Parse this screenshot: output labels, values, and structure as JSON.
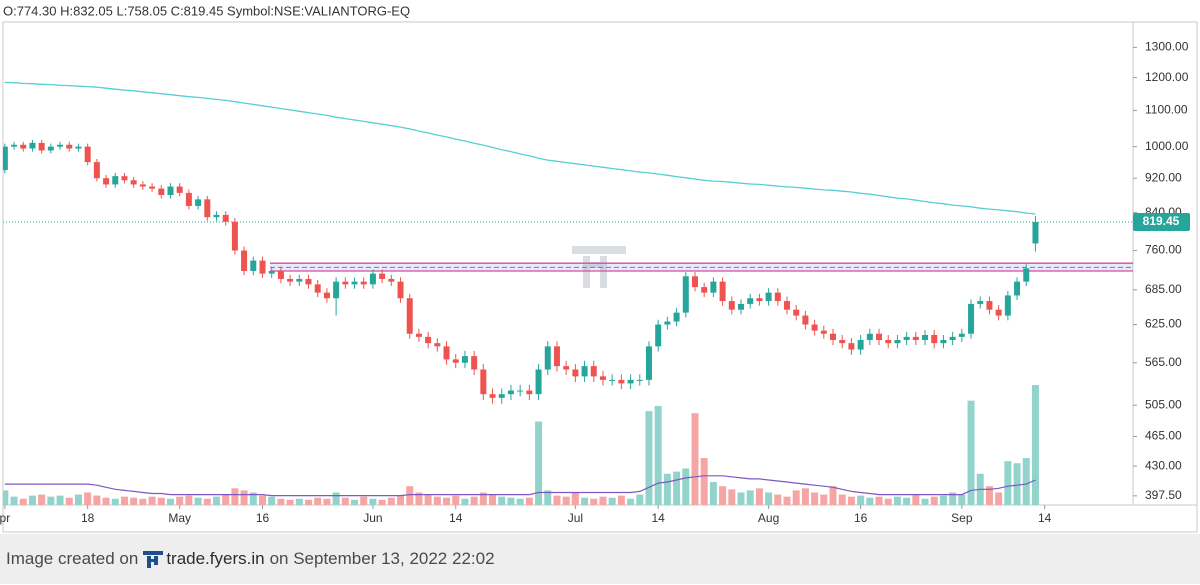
{
  "header": "O:774.30 H:832.05 L:758.05 C:819.45 Symbol:NSE:VALIANTORG-EQ",
  "footer": {
    "prefix": "Image created on",
    "site": "trade.fyers.in",
    "suffix": "on September 13, 2022 22:02"
  },
  "chart_data": {
    "type": "candlestick",
    "log_scale": true,
    "grid": false,
    "up_color": "#26a69a",
    "down_color": "#ef5350",
    "volume_up_color": "#92d4cc",
    "volume_down_color": "#f5a6a4",
    "sma_color": "#56cfd6",
    "volume_ma_color": "#7e57c2",
    "zone_color": "#e0489a",
    "zone_mid_color": "#5b7fd6",
    "ylim": [
      388,
      1390
    ],
    "yticks": [
      {
        "value": 1300,
        "label": "1300.00"
      },
      {
        "value": 1200,
        "label": "1200.00"
      },
      {
        "value": 1100,
        "label": "1100.00"
      },
      {
        "value": 1000,
        "label": "1000.00"
      },
      {
        "value": 920,
        "label": "920.00"
      },
      {
        "value": 840,
        "label": "840.00"
      },
      {
        "value": 760,
        "label": "760.00"
      },
      {
        "value": 685,
        "label": "685.00"
      },
      {
        "value": 625,
        "label": "625.00"
      },
      {
        "value": 565,
        "label": "565.00"
      },
      {
        "value": 505,
        "label": "505.00"
      },
      {
        "value": 465,
        "label": "465.00"
      },
      {
        "value": 430,
        "label": "430.00"
      },
      {
        "value": 397.5,
        "label": "397.50"
      }
    ],
    "xlim": [
      -0.2,
      122.6
    ],
    "xticks": [
      {
        "value": 0,
        "label": "pr"
      },
      {
        "value": 9,
        "label": "18"
      },
      {
        "value": 19,
        "label": "May"
      },
      {
        "value": 28,
        "label": "16"
      },
      {
        "value": 40,
        "label": "Jun"
      },
      {
        "value": 49,
        "label": "14"
      },
      {
        "value": 62,
        "label": "Jul"
      },
      {
        "value": 71,
        "label": "14"
      },
      {
        "value": 83,
        "label": "Aug"
      },
      {
        "value": 93,
        "label": "16"
      },
      {
        "value": 104,
        "label": "Sep"
      },
      {
        "value": 113,
        "label": "14"
      }
    ],
    "open": [
      940,
      1000,
      1005,
      995,
      1010,
      990,
      1000,
      1005,
      995,
      1000,
      960,
      920,
      905,
      925,
      915,
      905,
      900,
      895,
      880,
      900,
      885,
      855,
      870,
      830,
      835,
      820,
      760,
      720,
      740,
      715,
      720,
      705,
      700,
      705,
      695,
      680,
      670,
      700,
      695,
      700,
      695,
      715,
      705,
      700,
      670,
      610,
      605,
      595,
      590,
      570,
      565,
      575,
      555,
      520,
      515,
      520,
      525,
      525,
      520,
      555,
      590,
      560,
      555,
      545,
      560,
      545,
      540,
      540,
      535,
      540,
      540,
      590,
      625,
      630,
      645,
      710,
      690,
      680,
      700,
      665,
      650,
      660,
      670,
      665,
      680,
      665,
      650,
      640,
      625,
      615,
      610,
      600,
      595,
      585,
      600,
      610,
      600,
      595,
      600,
      605,
      600,
      608,
      595,
      600,
      605,
      610,
      660,
      665,
      650,
      640,
      675,
      700,
      774.3
    ],
    "high": [
      1008,
      1013,
      1013,
      1018,
      1018,
      1008,
      1013,
      1013,
      1008,
      1008,
      968,
      928,
      933,
      933,
      923,
      913,
      908,
      903,
      908,
      908,
      893,
      878,
      878,
      843,
      843,
      828,
      768,
      748,
      748,
      728,
      728,
      713,
      713,
      713,
      703,
      688,
      708,
      708,
      708,
      708,
      723,
      723,
      713,
      708,
      678,
      618,
      613,
      603,
      598,
      578,
      583,
      583,
      563,
      528,
      528,
      533,
      533,
      533,
      563,
      598,
      598,
      568,
      563,
      568,
      568,
      553,
      548,
      548,
      548,
      548,
      598,
      633,
      638,
      653,
      718,
      718,
      698,
      708,
      708,
      673,
      668,
      678,
      678,
      688,
      688,
      673,
      658,
      648,
      633,
      623,
      618,
      608,
      603,
      608,
      618,
      618,
      608,
      608,
      613,
      613,
      616,
      616,
      608,
      613,
      618,
      668,
      673,
      673,
      658,
      683,
      708,
      733,
      832.05
    ],
    "low": [
      932,
      992,
      987,
      987,
      982,
      982,
      992,
      987,
      987,
      952,
      912,
      897,
      897,
      907,
      897,
      892,
      887,
      872,
      872,
      877,
      847,
      847,
      822,
      822,
      812,
      752,
      712,
      712,
      707,
      707,
      697,
      692,
      692,
      687,
      672,
      662,
      640,
      687,
      687,
      687,
      687,
      697,
      692,
      662,
      602,
      597,
      587,
      582,
      562,
      557,
      557,
      547,
      512,
      507,
      507,
      512,
      517,
      512,
      512,
      547,
      552,
      547,
      537,
      537,
      537,
      532,
      532,
      527,
      527,
      532,
      532,
      582,
      617,
      622,
      637,
      682,
      672,
      672,
      657,
      642,
      642,
      652,
      657,
      657,
      657,
      642,
      632,
      617,
      607,
      602,
      592,
      587,
      577,
      577,
      592,
      592,
      587,
      587,
      592,
      592,
      592,
      587,
      587,
      592,
      597,
      602,
      652,
      642,
      632,
      632,
      667,
      692,
      758.05
    ],
    "close": [
      1000,
      1005,
      995,
      1010,
      990,
      1000,
      1005,
      995,
      1000,
      960,
      920,
      905,
      925,
      915,
      905,
      900,
      895,
      880,
      900,
      885,
      855,
      870,
      830,
      835,
      820,
      760,
      720,
      740,
      715,
      720,
      705,
      700,
      705,
      695,
      680,
      670,
      700,
      695,
      700,
      695,
      715,
      705,
      700,
      670,
      610,
      605,
      595,
      590,
      570,
      565,
      575,
      555,
      520,
      515,
      520,
      525,
      525,
      520,
      555,
      590,
      560,
      555,
      545,
      560,
      545,
      540,
      540,
      535,
      540,
      540,
      590,
      625,
      630,
      645,
      710,
      690,
      680,
      700,
      665,
      650,
      660,
      670,
      665,
      680,
      665,
      650,
      640,
      625,
      615,
      610,
      600,
      595,
      585,
      600,
      610,
      600,
      595,
      600,
      605,
      600,
      608,
      595,
      600,
      605,
      610,
      660,
      665,
      650,
      640,
      675,
      700,
      725,
      819.45
    ],
    "volume": [
      14,
      8,
      6,
      9,
      10,
      8,
      9,
      7,
      10,
      12,
      9,
      7,
      6,
      8,
      7,
      6,
      8,
      7,
      6,
      8,
      9,
      7,
      6,
      8,
      10,
      16,
      14,
      12,
      9,
      8,
      6,
      5,
      6,
      5,
      7,
      6,
      12,
      7,
      5,
      8,
      6,
      5,
      7,
      9,
      18,
      12,
      10,
      8,
      7,
      9,
      6,
      8,
      12,
      10,
      8,
      7,
      6,
      7,
      80,
      14,
      9,
      8,
      12,
      7,
      6,
      8,
      7,
      9,
      6,
      10,
      90,
      95,
      30,
      32,
      35,
      88,
      45,
      22,
      18,
      15,
      12,
      14,
      16,
      12,
      10,
      8,
      14,
      16,
      12,
      10,
      18,
      10,
      8,
      9,
      7,
      8,
      6,
      8,
      7,
      10,
      6,
      8,
      9,
      12,
      10,
      100,
      30,
      18,
      12,
      42,
      40,
      45,
      115
    ],
    "volume_ma": [
      20,
      20,
      20,
      20,
      20,
      20,
      20,
      20,
      20,
      20,
      19,
      17,
      15,
      14,
      13,
      12,
      11,
      11,
      10,
      10,
      10,
      10,
      10,
      10,
      10,
      10,
      10,
      10,
      10,
      9,
      9,
      9,
      9,
      9,
      9,
      9,
      9,
      9,
      9,
      9,
      9,
      9,
      9,
      9,
      10,
      10,
      10,
      10,
      10,
      10,
      10,
      10,
      10,
      10,
      10,
      10,
      10,
      10,
      12,
      12,
      12,
      12,
      12,
      12,
      12,
      12,
      12,
      12,
      12,
      13,
      17,
      21,
      22,
      24,
      26,
      27,
      28,
      28,
      28,
      27,
      26,
      25,
      25,
      24,
      23,
      22,
      21,
      20,
      19,
      18,
      17,
      15,
      13,
      12,
      11,
      10,
      10,
      10,
      10,
      10,
      10,
      10,
      10,
      10,
      10,
      14,
      15,
      15,
      16,
      18,
      19,
      20,
      24
    ],
    "sma": [
      1185,
      1184,
      1182,
      1181,
      1179,
      1178,
      1176,
      1175,
      1173,
      1172,
      1170,
      1167,
      1164,
      1161,
      1159,
      1156,
      1153,
      1150,
      1147,
      1144,
      1141,
      1139,
      1136,
      1133,
      1130,
      1126,
      1122,
      1118,
      1114,
      1110,
      1106,
      1102,
      1098,
      1094,
      1090,
      1086,
      1081,
      1077,
      1073,
      1069,
      1065,
      1061,
      1057,
      1053,
      1048,
      1042,
      1037,
      1031,
      1026,
      1020,
      1015,
      1009,
      1004,
      998,
      992,
      987,
      981,
      976,
      970,
      965,
      962,
      959,
      956,
      953,
      950,
      947,
      944,
      941,
      938,
      935,
      933,
      930,
      927,
      924,
      921,
      918,
      915,
      913,
      912,
      910,
      908,
      906,
      905,
      903,
      901,
      899,
      898,
      896,
      894,
      892,
      891,
      889,
      887,
      884,
      882,
      879,
      876,
      873,
      871,
      868,
      865,
      862,
      860,
      857,
      855,
      853,
      850,
      848,
      846,
      844,
      842,
      839,
      837
    ],
    "zone": [
      720,
      735
    ],
    "zone_mid": 727,
    "last_price": 819.45
  }
}
